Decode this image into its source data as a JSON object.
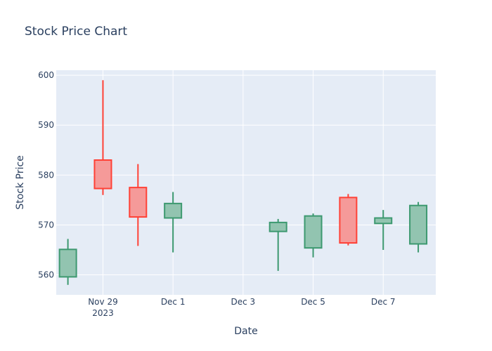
{
  "chart_data": {
    "type": "candlestick",
    "title": "Stock Price Chart",
    "xlabel": "Date",
    "ylabel": "Stock Price",
    "ylim": [
      556,
      601
    ],
    "xlim": [
      "2023-11-27T16:00",
      "2023-12-08T12:00"
    ],
    "grid": true,
    "y_ticks": [
      560,
      570,
      580,
      590,
      600
    ],
    "x_ticks": [
      {
        "date": "2023-11-29",
        "label": "Nov 29",
        "sublabel": "2023"
      },
      {
        "date": "2023-12-01",
        "label": "Dec 1",
        "sublabel": ""
      },
      {
        "date": "2023-12-03",
        "label": "Dec 3",
        "sublabel": ""
      },
      {
        "date": "2023-12-05",
        "label": "Dec 5",
        "sublabel": ""
      },
      {
        "date": "2023-12-07",
        "label": "Dec 7",
        "sublabel": ""
      }
    ],
    "series": [
      {
        "data": [
          {
            "date": "2023-11-28",
            "open": 559.6,
            "high": 567.2,
            "low": 558.0,
            "close": 565.1
          },
          {
            "date": "2023-11-29",
            "open": 583.0,
            "high": 599.0,
            "low": 576.0,
            "close": 577.3
          },
          {
            "date": "2023-11-30",
            "open": 577.5,
            "high": 582.2,
            "low": 565.8,
            "close": 571.6
          },
          {
            "date": "2023-12-01",
            "open": 571.4,
            "high": 576.6,
            "low": 564.5,
            "close": 574.3
          },
          {
            "date": "2023-12-04",
            "open": 568.7,
            "high": 571.2,
            "low": 560.8,
            "close": 570.5
          },
          {
            "date": "2023-12-05",
            "open": 565.4,
            "high": 572.3,
            "low": 563.5,
            "close": 571.8
          },
          {
            "date": "2023-12-06",
            "open": 575.5,
            "high": 576.2,
            "low": 565.9,
            "close": 566.4
          },
          {
            "date": "2023-12-07",
            "open": 570.3,
            "high": 573.0,
            "low": 565.0,
            "close": 571.4
          },
          {
            "date": "2023-12-08",
            "open": 566.2,
            "high": 574.6,
            "low": 564.5,
            "close": 573.9
          }
        ]
      }
    ],
    "colors": {
      "increasing_line": "#3d9970",
      "increasing_fill": "#92c4b0",
      "decreasing_line": "#ff4136",
      "decreasing_fill": "#f59a99",
      "plot_background": "#e5ecf6",
      "grid": "#ffffff",
      "text": "#2a3f5f"
    }
  }
}
